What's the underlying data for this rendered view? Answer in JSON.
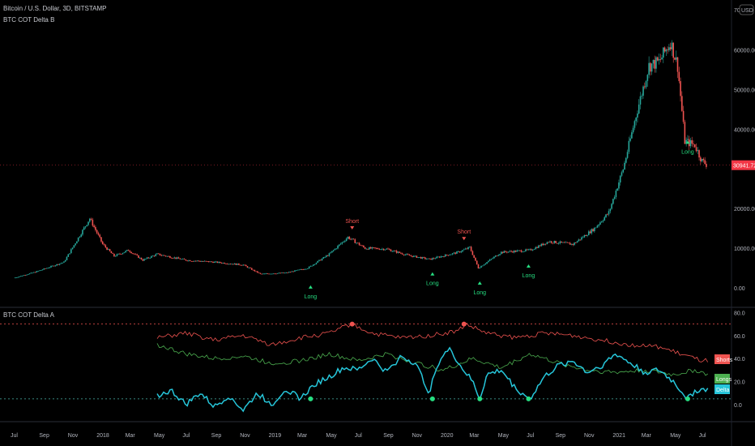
{
  "header": {
    "symbol": "Bitcoin / U.S. Dollar, 3D, BITSTAMP",
    "overlay": "BTC COT Delta B"
  },
  "pane2": {
    "title": "BTC COT Delta A"
  },
  "currency_badge": "USD",
  "colors": {
    "up": "#26a69a",
    "down": "#ef5350",
    "shorts": "#ef5350",
    "longs": "#4caf50",
    "delta": "#26c6da",
    "long_signal": "#26de81",
    "price_tag": "#f23645"
  },
  "chart_data": {
    "type": "candlestick+line",
    "price_axis": {
      "ticks": [
        "0.00",
        "10000.00",
        "20000.00",
        "40000.00",
        "50000.00",
        "60000.00"
      ],
      "top_partial": "70",
      "range": [
        -1000,
        70000
      ]
    },
    "last_price": "30941.72",
    "time_axis": [
      "Jul",
      "Sep",
      "Nov",
      "2018",
      "Mar",
      "May",
      "Jul",
      "Sep",
      "Nov",
      "2019",
      "Mar",
      "May",
      "Jul",
      "Sep",
      "Nov",
      "2020",
      "Mar",
      "May",
      "Jul",
      "Sep",
      "Nov",
      "2021",
      "Mar",
      "May",
      "Jul"
    ],
    "price_path": [
      [
        0,
        2500
      ],
      [
        1.5,
        4000
      ],
      [
        3.5,
        6500
      ],
      [
        5.3,
        17500
      ],
      [
        6.2,
        11000
      ],
      [
        7,
        8000
      ],
      [
        8,
        9500
      ],
      [
        9,
        7000
      ],
      [
        10,
        8500
      ],
      [
        12,
        7000
      ],
      [
        14,
        6500
      ],
      [
        16,
        5800
      ],
      [
        17.2,
        3500
      ],
      [
        19,
        3800
      ],
      [
        20.5,
        5000
      ],
      [
        22,
        8500
      ],
      [
        23.3,
        12800
      ],
      [
        24.5,
        10000
      ],
      [
        26,
        9800
      ],
      [
        27.5,
        8200
      ],
      [
        29,
        7200
      ],
      [
        31,
        9000
      ],
      [
        31.8,
        10200
      ],
      [
        32.4,
        5000
      ],
      [
        34,
        9000
      ],
      [
        36,
        9500
      ],
      [
        37.3,
        11700
      ],
      [
        39,
        11000
      ],
      [
        40.5,
        15000
      ],
      [
        41.5,
        19000
      ],
      [
        42.5,
        30000
      ],
      [
        43.5,
        45000
      ],
      [
        44.3,
        56000
      ],
      [
        45,
        57000
      ],
      [
        45.8,
        62000
      ],
      [
        46.3,
        56000
      ],
      [
        46.8,
        37000
      ],
      [
        47.5,
        36000
      ],
      [
        48,
        32000
      ],
      [
        48.4,
        30941
      ]
    ],
    "signals": [
      {
        "label": "Long",
        "type": "long",
        "month": 20.7,
        "price": 3500
      },
      {
        "label": "Short",
        "type": "short",
        "month": 23.6,
        "price": 13500
      },
      {
        "label": "Long",
        "type": "long",
        "month": 29.2,
        "price": 6800
      },
      {
        "label": "Short",
        "type": "short",
        "month": 31.4,
        "price": 10800
      },
      {
        "label": "Long",
        "type": "long",
        "month": 32.5,
        "price": 4500
      },
      {
        "label": "Long",
        "type": "long",
        "month": 35.9,
        "price": 8800
      },
      {
        "label": "Long",
        "type": "long",
        "month": 47,
        "price": 40000
      }
    ],
    "indicator": {
      "axis_ticks": [
        "80.0",
        "60.0",
        "40.0",
        "20.0",
        "0.0"
      ],
      "range": [
        -8,
        84
      ],
      "upper_level": 70,
      "lower_level": 5,
      "series": [
        {
          "name": "Shorts",
          "path": [
            [
              10,
              58
            ],
            [
              12,
              62
            ],
            [
              14,
              56
            ],
            [
              16,
              60
            ],
            [
              18,
              52
            ],
            [
              20,
              58
            ],
            [
              22,
              62
            ],
            [
              23.5,
              70
            ],
            [
              25,
              62
            ],
            [
              27,
              58
            ],
            [
              29,
              60
            ],
            [
              31,
              64
            ],
            [
              31.5,
              70
            ],
            [
              33,
              62
            ],
            [
              35,
              58
            ],
            [
              37,
              62
            ],
            [
              39,
              60
            ],
            [
              41,
              56
            ],
            [
              43,
              52
            ],
            [
              45,
              50
            ],
            [
              46.5,
              44
            ],
            [
              48,
              38
            ],
            [
              48.5,
              38
            ]
          ]
        },
        {
          "name": "Longs",
          "path": [
            [
              10,
              52
            ],
            [
              12,
              44
            ],
            [
              14,
              40
            ],
            [
              16,
              42
            ],
            [
              18,
              36
            ],
            [
              20,
              38
            ],
            [
              22,
              44
            ],
            [
              24,
              38
            ],
            [
              26,
              44
            ],
            [
              28,
              36
            ],
            [
              30,
              30
            ],
            [
              32,
              40
            ],
            [
              34,
              32
            ],
            [
              36,
              44
            ],
            [
              38,
              36
            ],
            [
              40,
              30
            ],
            [
              42,
              28
            ],
            [
              44,
              30
            ],
            [
              46,
              26
            ],
            [
              47.5,
              30
            ],
            [
              48.5,
              26
            ]
          ]
        },
        {
          "name": "Delta",
          "path": [
            [
              10,
              8
            ],
            [
              11,
              12
            ],
            [
              12,
              0
            ],
            [
              13,
              10
            ],
            [
              14,
              -2
            ],
            [
              15,
              8
            ],
            [
              16,
              -5
            ],
            [
              17,
              10
            ],
            [
              18,
              0
            ],
            [
              19,
              14
            ],
            [
              20,
              5
            ],
            [
              21,
              18
            ],
            [
              22,
              24
            ],
            [
              23,
              32
            ],
            [
              24,
              30
            ],
            [
              25,
              40
            ],
            [
              26,
              28
            ],
            [
              27,
              42
            ],
            [
              28,
              36
            ],
            [
              29,
              10
            ],
            [
              29.5,
              34
            ],
            [
              30,
              44
            ],
            [
              30.5,
              48
            ],
            [
              31,
              36
            ],
            [
              32,
              20
            ],
            [
              32.5,
              5
            ],
            [
              33,
              26
            ],
            [
              34,
              30
            ],
            [
              35,
              14
            ],
            [
              36,
              5
            ],
            [
              37,
              24
            ],
            [
              38,
              34
            ],
            [
              39,
              38
            ],
            [
              40,
              28
            ],
            [
              41,
              34
            ],
            [
              42,
              44
            ],
            [
              43,
              36
            ],
            [
              44,
              28
            ],
            [
              45,
              30
            ],
            [
              46,
              20
            ],
            [
              47,
              5
            ],
            [
              47.5,
              12
            ],
            [
              48.5,
              14
            ]
          ]
        }
      ],
      "short_markers": [
        23.6,
        31.4
      ],
      "long_markers": [
        20.7,
        29.2,
        32.5,
        35.9,
        47
      ]
    }
  }
}
